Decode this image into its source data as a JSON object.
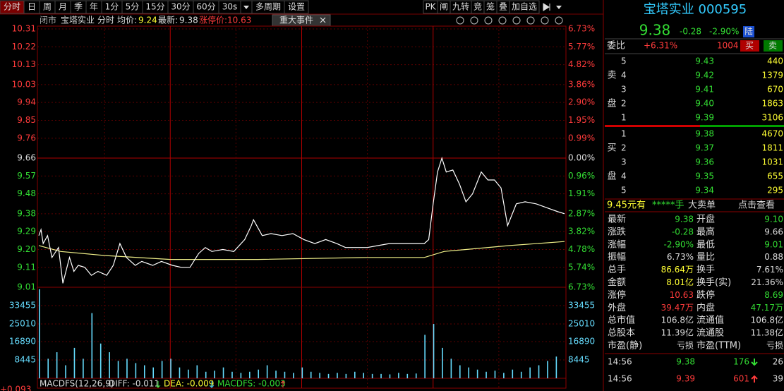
{
  "toolbar": {
    "left": [
      "分时",
      "日",
      "周",
      "月",
      "季",
      "年",
      "1分",
      "5分",
      "15分",
      "30分",
      "60分",
      "30s",
      "多周期",
      "设置"
    ],
    "right": [
      "PK",
      "闸",
      "九转",
      "竞",
      "笼",
      "叠",
      "加自选"
    ]
  },
  "info_bar": {
    "status": "闭市",
    "name": "宝塔实业",
    "mode": "分时",
    "avg_label": "均价:",
    "avg": "9.24",
    "latest_label": "最新:",
    "latest": "9.38",
    "limit": "涨停价:10.63",
    "event": "重大事件"
  },
  "chart": {
    "xlim": [
      0,
      240
    ],
    "price": {
      "ylim": [
        9.01,
        10.31
      ],
      "ticks": [
        10.31,
        10.22,
        10.13,
        10.03,
        9.94,
        9.85,
        9.76,
        9.66,
        9.57,
        9.48,
        9.38,
        9.29,
        {
          "value": 9.2,
          "label": "9.20"
        },
        9.11,
        9.01
      ],
      "pct_labels": [
        "6.73%",
        "5.77%",
        "4.82%",
        "3.86%",
        "2.90%",
        "1.95%",
        "0.99%",
        "0.00%",
        "0.96%",
        "1.91%",
        "2.87%",
        "3.82%",
        "4.78%",
        "5.74%",
        "6.73%"
      ],
      "x": [
        0,
        1,
        2,
        4,
        6,
        9,
        11,
        14,
        16,
        18,
        21,
        24,
        27,
        31,
        34,
        37,
        40,
        44,
        47,
        52,
        56,
        61,
        65,
        69,
        73,
        76,
        79,
        84,
        89,
        94,
        97,
        98,
        102,
        106,
        111,
        116,
        121,
        126,
        131,
        136,
        140,
        145,
        150,
        155,
        160,
        165,
        169,
        176,
        178,
        180,
        182,
        184,
        186,
        189,
        192,
        195,
        198,
        202,
        205,
        208,
        211,
        214,
        218,
        222,
        227,
        232,
        237,
        240
      ],
      "values": [
        9.27,
        9.3,
        9.23,
        9.27,
        9.16,
        9.21,
        9.03,
        9.16,
        9.09,
        9.12,
        9.11,
        9.07,
        9.09,
        9.07,
        9.12,
        9.23,
        9.16,
        9.12,
        9.14,
        9.12,
        9.14,
        9.12,
        9.11,
        9.11,
        9.18,
        9.21,
        9.19,
        9.2,
        9.19,
        9.25,
        9.32,
        9.35,
        9.27,
        9.28,
        9.27,
        9.28,
        9.25,
        9.23,
        9.25,
        9.23,
        9.21,
        9.21,
        9.21,
        9.22,
        9.23,
        9.23,
        9.23,
        9.23,
        9.25,
        9.43,
        9.59,
        9.66,
        9.59,
        9.6,
        9.53,
        9.44,
        9.48,
        9.59,
        9.55,
        9.55,
        9.51,
        9.32,
        9.43,
        9.44,
        9.43,
        9.41,
        9.39,
        9.38
      ]
    },
    "avg": {
      "x": [
        0,
        10,
        30,
        60,
        100,
        150,
        176,
        185,
        195,
        215,
        240
      ],
      "values": [
        9.22,
        9.19,
        9.17,
        9.15,
        9.15,
        9.16,
        9.16,
        9.19,
        9.2,
        9.22,
        9.24
      ]
    },
    "volume": {
      "ylim": [
        0,
        41900
      ],
      "ticks": [
        8445,
        16890,
        25010,
        33455
      ],
      "x": [
        0,
        4,
        8,
        12,
        16,
        20,
        24,
        28,
        32,
        36,
        40,
        44,
        48,
        52,
        56,
        60,
        64,
        68,
        72,
        76,
        80,
        84,
        88,
        92,
        96,
        100,
        104,
        108,
        112,
        116,
        120,
        124,
        128,
        132,
        136,
        140,
        144,
        148,
        152,
        156,
        160,
        164,
        168,
        172,
        176,
        180,
        184,
        188,
        192,
        196,
        200,
        204,
        208,
        212,
        216,
        220,
        224,
        228,
        232,
        236
      ],
      "values": [
        41000,
        9000,
        12000,
        6000,
        14000,
        9000,
        30000,
        16000,
        12000,
        8000,
        9000,
        7000,
        6000,
        5000,
        8000,
        9000,
        5000,
        4000,
        6000,
        3000,
        3500,
        5000,
        3000,
        2500,
        3000,
        4000,
        6000,
        3500,
        3000,
        2500,
        5000,
        3000,
        2500,
        2000,
        2500,
        2000,
        3000,
        2500,
        2000,
        2000,
        1800,
        2500,
        2000,
        2200,
        20000,
        25000,
        14000,
        9000,
        6000,
        5000,
        4000,
        3000,
        3500,
        2500,
        4000,
        3000,
        5000,
        6000,
        8000,
        10000
      ]
    },
    "macd": {
      "name": "MACDFS(12,26,9)",
      "diff": "DIFF: -0.011",
      "dea": "DEA: -0.009",
      "macdfs": "MACDFS: -0.003",
      "scale": "+0.093"
    }
  },
  "quote": {
    "title": "宝塔实业 000595",
    "price": "9.38",
    "change": "-0.28",
    "pct": "-2.90%",
    "badge": "陆",
    "weibi_label": "委比",
    "weibi": "+6.31%",
    "weicha": "1004",
    "buy_btn": "买",
    "sell_btn": "卖",
    "sell_side": [
      "卖",
      "盘"
    ],
    "sell": [
      [
        "5",
        "9.43",
        "440"
      ],
      [
        "4",
        "9.42",
        "1379"
      ],
      [
        "3",
        "9.41",
        "670"
      ],
      [
        "2",
        "9.40",
        "1863"
      ],
      [
        "1",
        "9.39",
        "3106"
      ]
    ],
    "buy_side": [
      "买",
      "盘"
    ],
    "buy": [
      [
        "1",
        "9.38",
        "4670"
      ],
      [
        "2",
        "9.37",
        "1811"
      ],
      [
        "3",
        "9.36",
        "1031"
      ],
      [
        "4",
        "9.35",
        "655"
      ],
      [
        "5",
        "9.34",
        "295"
      ]
    ],
    "ticker": [
      "9.45元有",
      "*****手",
      "大卖单",
      "点击查看"
    ],
    "stats": [
      [
        "最新",
        "9.38",
        "开盘",
        "9.10"
      ],
      [
        "涨跌",
        "-0.28",
        "最高",
        "9.66"
      ],
      [
        "涨幅",
        "-2.90%",
        "最低",
        "9.01"
      ],
      [
        "振幅",
        "6.73%",
        "量比",
        "0.88"
      ],
      [
        "总手",
        "86.64万",
        "换手",
        "7.61%"
      ],
      [
        "金额",
        "8.01亿",
        "换手(实)",
        "21.36%"
      ],
      [
        "涨停",
        "10.63",
        "跌停",
        "8.69"
      ],
      [
        "外盘",
        "39.47万",
        "内盘",
        "47.17万"
      ],
      [
        "总市值",
        "106.8亿",
        "流通值",
        "106.8亿"
      ],
      [
        "总股本",
        "11.39亿",
        "流通股",
        "11.38亿"
      ],
      [
        "市盈(静)",
        "亏损",
        "市盈(TTM)",
        "亏损"
      ]
    ],
    "trades": [
      [
        "14:56",
        "9.38",
        "176",
        "26"
      ],
      [
        "14:56",
        "9.39",
        "601",
        "39"
      ]
    ]
  }
}
